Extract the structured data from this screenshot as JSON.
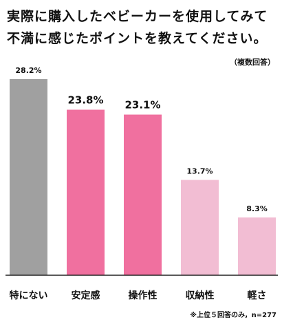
{
  "title_line1": "実際に購入したベビーカーを使用してみて",
  "title_line2": "不満に感じたポイントを教えてください。",
  "note": "（複数回答）",
  "footnote": "※上位５回答のみ，n=277",
  "chart_data": {
    "type": "bar",
    "categories": [
      "特にない",
      "安定感",
      "操作性",
      "収納性",
      "軽さ"
    ],
    "values": [
      28.2,
      23.8,
      23.1,
      13.7,
      8.3
    ],
    "value_labels": [
      "28.2%",
      "23.8%",
      "23.1%",
      "13.7%",
      "8.3%"
    ],
    "colors": [
      "#a0a0a0",
      "#f0709f",
      "#f0709f",
      "#f2bdd3",
      "#f2bdd3"
    ],
    "ylim": [
      0,
      30
    ],
    "grid": false
  }
}
